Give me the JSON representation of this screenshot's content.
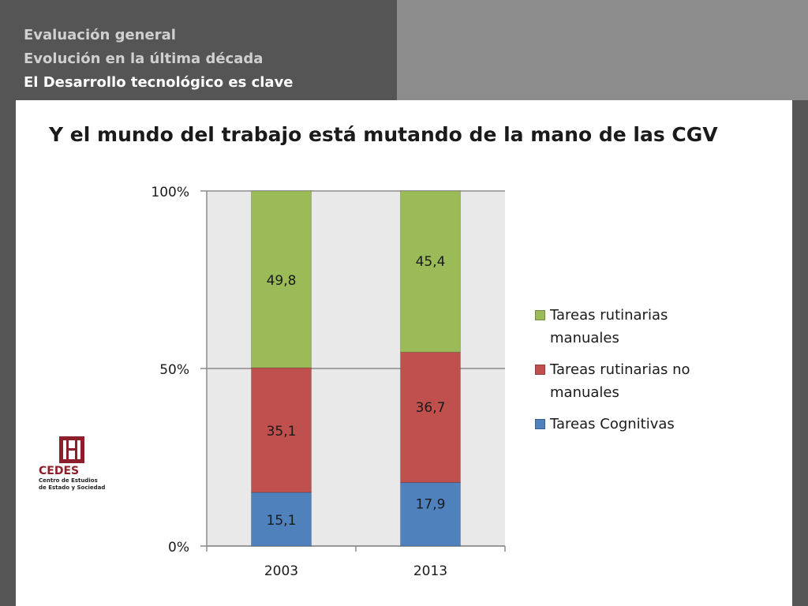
{
  "header": {
    "breadcrumb": [
      "Evaluación general",
      "Evolución en la última década",
      "El Desarrollo tecnológico es clave"
    ]
  },
  "slide": {
    "title": "Y el mundo del trabajo está mutando de la mano de las CGV"
  },
  "colors": {
    "background_dark": "#555555",
    "panel_gray": "#8c8c8c",
    "plot_area": "#e9e9e9",
    "grid": "#8c8c8c",
    "cognitivas": "#4f81bd",
    "no_manuales": "#c0504d",
    "manuales": "#9bbb59"
  },
  "chart_data": {
    "type": "bar",
    "stacked": true,
    "title": "",
    "xlabel": "",
    "ylabel": "",
    "categories": [
      "2003",
      "2013"
    ],
    "series": [
      {
        "name": "Tareas Cognitivas",
        "values": [
          15.1,
          17.9
        ],
        "labels": [
          "15,1",
          "17,9"
        ],
        "color": "#4f81bd"
      },
      {
        "name": "Tareas rutinarias no manuales",
        "values": [
          35.1,
          36.7
        ],
        "labels": [
          "35,1",
          "36,7"
        ],
        "color": "#c0504d"
      },
      {
        "name": "Tareas rutinarias manuales",
        "values": [
          49.8,
          45.4
        ],
        "labels": [
          "49,8",
          "45,4"
        ],
        "color": "#9bbb59"
      }
    ],
    "y_ticks": [
      {
        "value": 0,
        "label": "0%"
      },
      {
        "value": 50,
        "label": "50%"
      },
      {
        "value": 100,
        "label": "100%"
      }
    ],
    "ylim": [
      0,
      100
    ],
    "grid": true,
    "legend_position": "right",
    "legend": [
      {
        "name": "Tareas rutinarias manuales",
        "lines": [
          "Tareas rutinarias",
          "manuales"
        ],
        "color": "#9bbb59"
      },
      {
        "name": "Tareas rutinarias no manuales",
        "lines": [
          "Tareas rutinarias no",
          "manuales"
        ],
        "color": "#c0504d"
      },
      {
        "name": "Tareas Cognitivas",
        "lines": [
          "Tareas Cognitivas"
        ],
        "color": "#4f81bd"
      }
    ]
  },
  "logo": {
    "name": "CEDES",
    "subtitle_lines": [
      "Centro de Estudios",
      "de Estado y Sociedad"
    ]
  }
}
